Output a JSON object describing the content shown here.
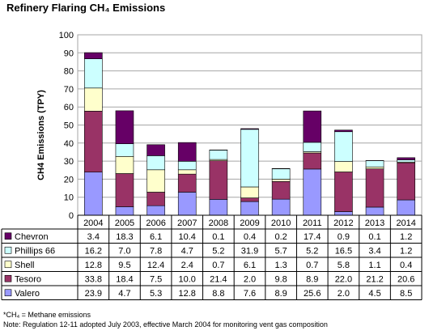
{
  "title": "Refinery Flaring CH₄ Emissions",
  "footnotes": {
    "methane": "*CH₄ = Methane emissions",
    "note": "Note: Regulation 12-11 adopted July 2003, effective March 2004 for monitoring vent gas composition"
  },
  "chart_data": {
    "type": "bar",
    "stacked": true,
    "with_data_table": true,
    "title": "Refinery Flaring CH₄ Emissions",
    "ylabel": "CH4 Emissions (TPY)",
    "xlabel": "",
    "ylim": [
      0,
      100
    ],
    "yticks": [
      0,
      10,
      20,
      30,
      40,
      50,
      60,
      70,
      80,
      90,
      100
    ],
    "grid": true,
    "categories": [
      "2004",
      "2005",
      "2006",
      "2007",
      "2008",
      "2009",
      "2010",
      "2011",
      "2012",
      "2013",
      "2014"
    ],
    "series": [
      {
        "name": "Valero",
        "color": "#9999ff",
        "values": [
          23.9,
          4.7,
          5.3,
          12.8,
          8.8,
          7.6,
          8.9,
          25.6,
          2.0,
          4.5,
          8.5
        ]
      },
      {
        "name": "Tesoro",
        "color": "#993366",
        "values": [
          33.8,
          18.4,
          7.5,
          10.0,
          21.4,
          2.0,
          9.8,
          8.9,
          22.0,
          21.2,
          20.6
        ]
      },
      {
        "name": "Shell",
        "color": "#ffffcc",
        "values": [
          12.8,
          9.5,
          12.4,
          2.4,
          0.7,
          6.1,
          1.3,
          0.7,
          5.8,
          1.1,
          0.4
        ]
      },
      {
        "name": "Phillips 66",
        "color": "#ccffff",
        "values": [
          16.2,
          7.0,
          7.8,
          4.7,
          5.2,
          31.9,
          5.7,
          5.2,
          16.5,
          3.4,
          1.2
        ]
      },
      {
        "name": "Chevron",
        "color": "#660066",
        "values": [
          3.4,
          18.3,
          6.1,
          10.4,
          0.1,
          0.4,
          0.2,
          17.4,
          0.9,
          0.1,
          1.2
        ]
      }
    ],
    "table_row_order": [
      "Chevron",
      "Phillips 66",
      "Shell",
      "Tesoro",
      "Valero"
    ]
  }
}
